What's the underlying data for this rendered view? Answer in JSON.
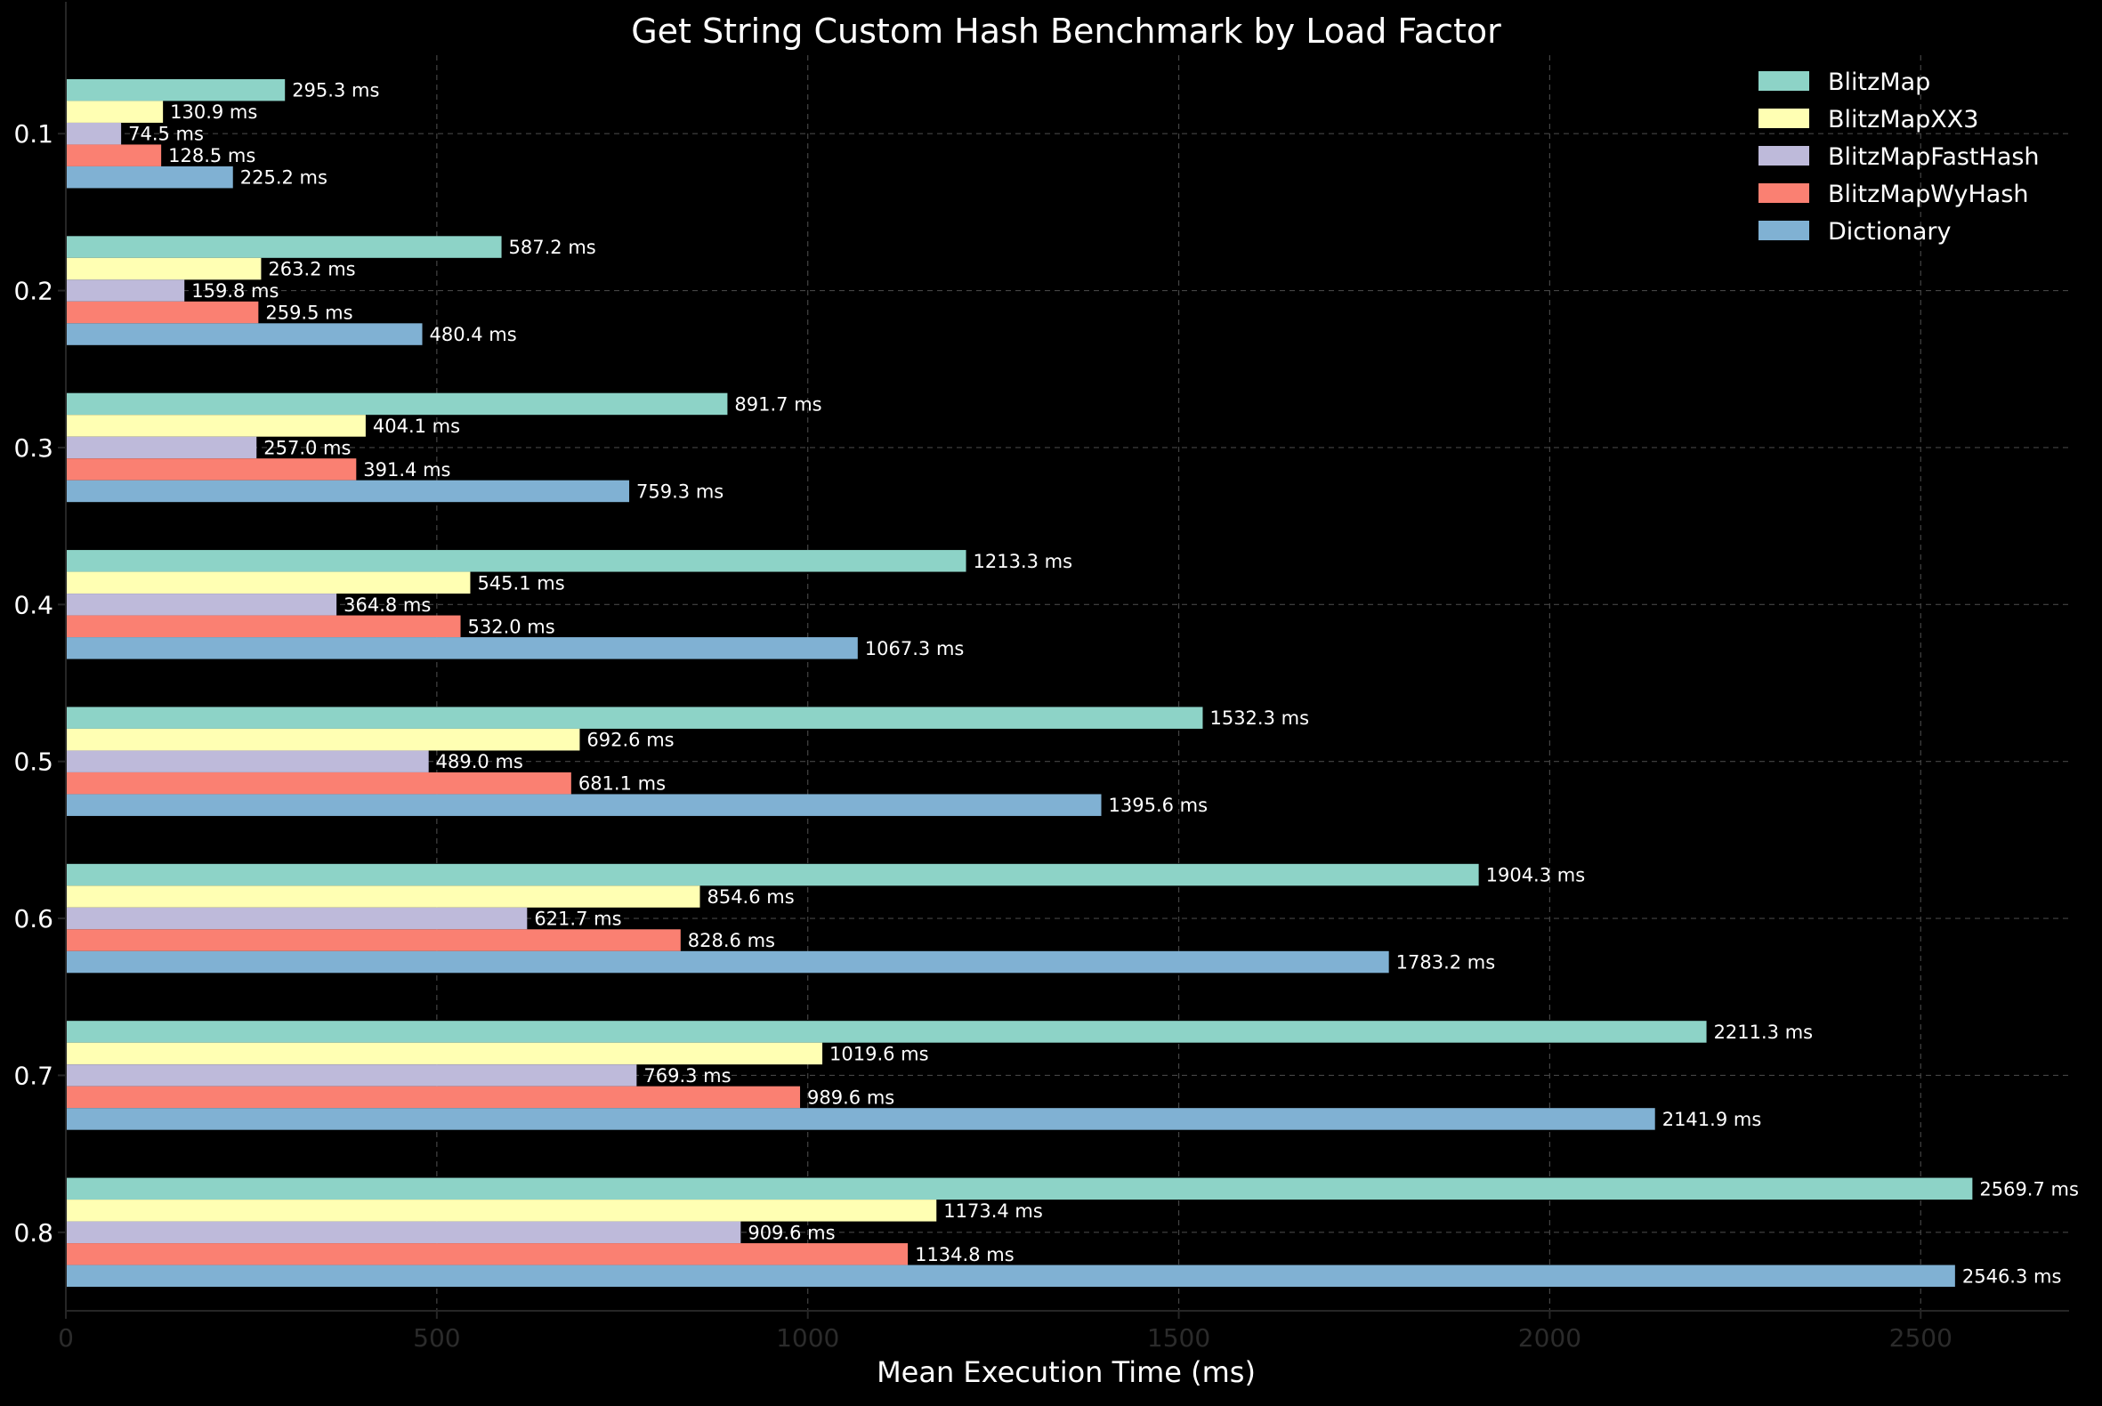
{
  "chart_data": {
    "type": "bar",
    "orientation": "horizontal",
    "title": "Get String Custom Hash Benchmark by Load Factor",
    "xlabel": "Mean Execution Time (ms)",
    "ylabel": "",
    "xlim": [
      0,
      2700
    ],
    "xticks": [
      0,
      500,
      1000,
      1500,
      2000,
      2500
    ],
    "categories": [
      "0.1",
      "0.2",
      "0.3",
      "0.4",
      "0.5",
      "0.6",
      "0.7",
      "0.8"
    ],
    "grid": true,
    "legend_position": "top-right",
    "value_label_suffix": " ms",
    "series": [
      {
        "name": "BlitzMap",
        "color": "#8dd3c7",
        "values": [
          295.3,
          587.2,
          891.7,
          1213.3,
          1532.3,
          1904.3,
          2211.3,
          2569.7
        ]
      },
      {
        "name": "BlitzMapXX3",
        "color": "#ffffb3",
        "values": [
          130.9,
          263.2,
          404.1,
          545.1,
          692.6,
          854.6,
          1019.6,
          1173.4
        ]
      },
      {
        "name": "BlitzMapFastHash",
        "color": "#bebada",
        "values": [
          74.5,
          159.8,
          257.0,
          364.8,
          489.0,
          621.7,
          769.3,
          909.6
        ]
      },
      {
        "name": "BlitzMapWyHash",
        "color": "#fa8072",
        "values": [
          128.5,
          259.5,
          391.4,
          532.0,
          681.1,
          828.6,
          989.6,
          1134.8
        ]
      },
      {
        "name": "Dictionary",
        "color": "#80b1d3",
        "values": [
          225.2,
          480.4,
          759.3,
          1067.3,
          1395.6,
          1783.2,
          2141.9,
          2546.3
        ]
      }
    ]
  }
}
